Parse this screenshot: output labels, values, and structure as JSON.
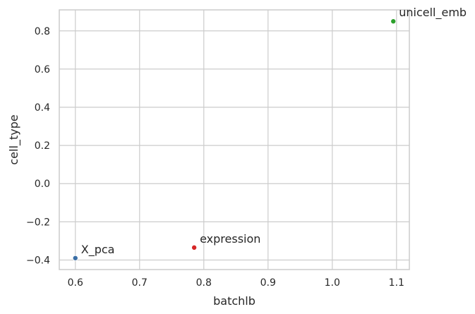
{
  "chart_data": {
    "type": "scatter",
    "xlabel": "batchlb",
    "ylabel": "cell_type",
    "xlim": [
      0.575,
      1.12
    ],
    "ylim": [
      -0.45,
      0.91
    ],
    "xticks": [
      0.6,
      0.7,
      0.8,
      0.9,
      1.0,
      1.1
    ],
    "xtick_labels": [
      "0.6",
      "0.7",
      "0.8",
      "0.9",
      "1.0",
      "1.1"
    ],
    "yticks": [
      -0.4,
      -0.2,
      0.0,
      0.2,
      0.4,
      0.6,
      0.8
    ],
    "ytick_labels": [
      "−0.4",
      "−0.2",
      "0.0",
      "0.2",
      "0.4",
      "0.6",
      "0.8"
    ],
    "grid": true,
    "points": [
      {
        "label": "X_pca",
        "x": 0.6,
        "y": -0.39,
        "color": "#3a6ea5"
      },
      {
        "label": "expression",
        "x": 0.785,
        "y": -0.335,
        "color": "#d62728"
      },
      {
        "label": "unicell_emb",
        "x": 1.095,
        "y": 0.85,
        "color": "#2ca02c"
      }
    ]
  }
}
